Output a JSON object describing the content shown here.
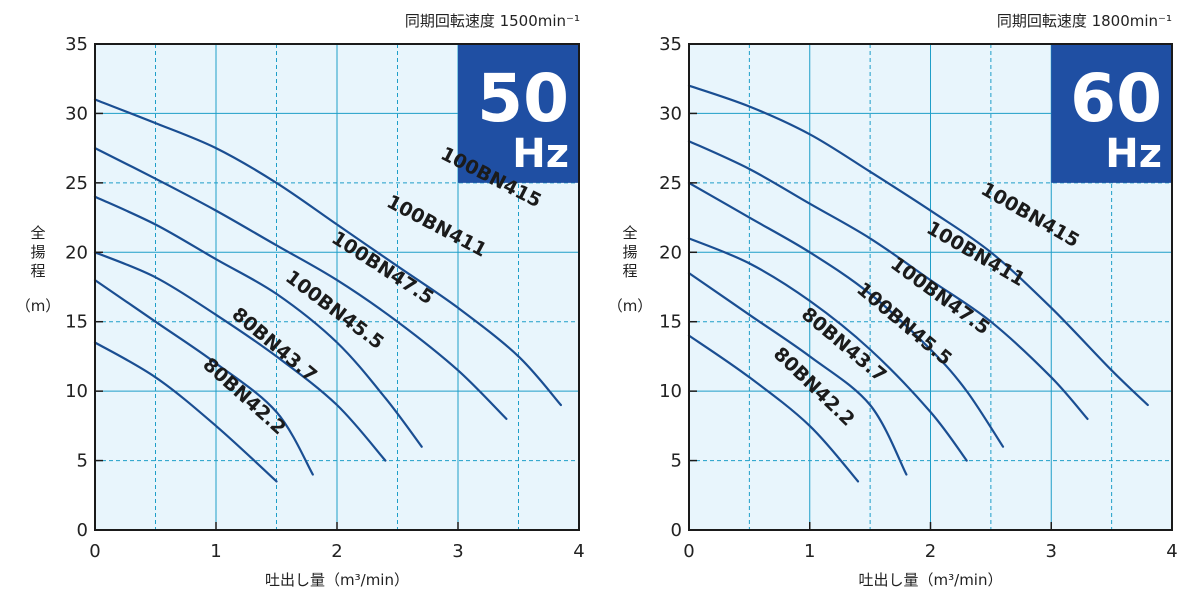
{
  "chart_data": [
    {
      "type": "line",
      "speed_label": "同期回転速度 1500min⁻¹",
      "badge_number": "50",
      "badge_unit": "Hz",
      "ylabel_chars": [
        "全",
        "揚",
        "程"
      ],
      "ylabel_unit": "（m）",
      "xlabel": "吐出し量（m³/min）",
      "xlim": [
        0,
        4
      ],
      "ylim": [
        0,
        35
      ],
      "xticks": [
        0,
        1,
        2,
        3,
        4
      ],
      "yticks": [
        0,
        5,
        10,
        15,
        20,
        25,
        30,
        35
      ],
      "grid": true,
      "background": "#e8f5fc",
      "line_color": "#1a4e92",
      "badge_color": "#1f4fa3",
      "series": [
        {
          "name": "100BN415",
          "label_at": [
            3.25,
            25.0
          ],
          "label_angle": 27,
          "points": [
            [
              0,
              31
            ],
            [
              0.5,
              29.3
            ],
            [
              1,
              27.5
            ],
            [
              1.5,
              25
            ],
            [
              2,
              22
            ],
            [
              2.5,
              19
            ],
            [
              3,
              16
            ],
            [
              3.5,
              12.5
            ],
            [
              3.85,
              9
            ]
          ]
        },
        {
          "name": "100BN411",
          "label_at": [
            2.8,
            21.5
          ],
          "label_angle": 28,
          "points": [
            [
              0,
              27.5
            ],
            [
              0.5,
              25.3
            ],
            [
              1,
              23
            ],
            [
              1.5,
              20.5
            ],
            [
              2,
              18
            ],
            [
              2.5,
              15
            ],
            [
              3,
              11.5
            ],
            [
              3.4,
              8
            ]
          ]
        },
        {
          "name": "100BN47.5",
          "label_at": [
            2.35,
            18.5
          ],
          "label_angle": 33,
          "points": [
            [
              0,
              24
            ],
            [
              0.5,
              22
            ],
            [
              1,
              19.5
            ],
            [
              1.5,
              17
            ],
            [
              2,
              13.5
            ],
            [
              2.4,
              9.5
            ],
            [
              2.7,
              6
            ]
          ]
        },
        {
          "name": "100BN45.5",
          "label_at": [
            1.95,
            15.5
          ],
          "label_angle": 37,
          "points": [
            [
              0,
              20
            ],
            [
              0.5,
              18.2
            ],
            [
              1,
              15.5
            ],
            [
              1.5,
              12.5
            ],
            [
              2,
              9
            ],
            [
              2.4,
              5
            ]
          ]
        },
        {
          "name": "80BN43.7",
          "label_at": [
            1.45,
            13.0
          ],
          "label_angle": 40,
          "points": [
            [
              0,
              18
            ],
            [
              0.5,
              15
            ],
            [
              1,
              12
            ],
            [
              1.5,
              8.5
            ],
            [
              1.8,
              4
            ]
          ]
        },
        {
          "name": "80BN42.2",
          "label_at": [
            1.2,
            9.3
          ],
          "label_angle": 42,
          "points": [
            [
              0,
              13.5
            ],
            [
              0.5,
              11
            ],
            [
              1,
              7.5
            ],
            [
              1.5,
              3.5
            ]
          ]
        }
      ]
    },
    {
      "type": "line",
      "speed_label": "同期回転速度 1800min⁻¹",
      "badge_number": "60",
      "badge_unit": "Hz",
      "ylabel_chars": [
        "全",
        "揚",
        "程"
      ],
      "ylabel_unit": "（m）",
      "xlabel": "吐出し量（m³/min）",
      "xlim": [
        0,
        4
      ],
      "ylim": [
        0,
        35
      ],
      "xticks": [
        0,
        1,
        2,
        3,
        4
      ],
      "yticks": [
        0,
        5,
        10,
        15,
        20,
        25,
        30,
        35
      ],
      "grid": true,
      "background": "#e8f5fc",
      "line_color": "#1a4e92",
      "badge_color": "#1f4fa3",
      "series": [
        {
          "name": "100BN415",
          "label_at": [
            2.8,
            22.3
          ],
          "label_angle": 30,
          "points": [
            [
              0,
              32
            ],
            [
              0.5,
              30.5
            ],
            [
              1,
              28.5
            ],
            [
              1.5,
              25.8
            ],
            [
              2,
              23
            ],
            [
              2.5,
              20
            ],
            [
              3,
              16
            ],
            [
              3.5,
              11.5
            ],
            [
              3.8,
              9
            ]
          ]
        },
        {
          "name": "100BN411",
          "label_at": [
            2.35,
            19.5
          ],
          "label_angle": 30,
          "points": [
            [
              0,
              28
            ],
            [
              0.5,
              26
            ],
            [
              1,
              23.5
            ],
            [
              1.5,
              21
            ],
            [
              2,
              18
            ],
            [
              2.5,
              15
            ],
            [
              3,
              11
            ],
            [
              3.3,
              8
            ]
          ]
        },
        {
          "name": "100BN47.5",
          "label_at": [
            2.05,
            16.5
          ],
          "label_angle": 36,
          "points": [
            [
              0,
              25
            ],
            [
              0.5,
              22.5
            ],
            [
              1,
              20
            ],
            [
              1.5,
              17
            ],
            [
              2,
              13
            ],
            [
              2.3,
              10
            ],
            [
              2.6,
              6
            ]
          ]
        },
        {
          "name": "100BN45.5",
          "label_at": [
            1.75,
            14.5
          ],
          "label_angle": 40,
          "points": [
            [
              0,
              21
            ],
            [
              0.5,
              19.2
            ],
            [
              1,
              16.5
            ],
            [
              1.5,
              13
            ],
            [
              2,
              8.5
            ],
            [
              2.3,
              5
            ]
          ]
        },
        {
          "name": "80BN43.7",
          "label_at": [
            1.25,
            13.0
          ],
          "label_angle": 40,
          "points": [
            [
              0,
              18.5
            ],
            [
              0.5,
              15.5
            ],
            [
              1,
              12.5
            ],
            [
              1.5,
              9
            ],
            [
              1.8,
              4
            ]
          ]
        },
        {
          "name": "80BN42.2",
          "label_at": [
            1.0,
            10.0
          ],
          "label_angle": 44,
          "points": [
            [
              0,
              14
            ],
            [
              0.5,
              11
            ],
            [
              1,
              7.5
            ],
            [
              1.4,
              3.5
            ]
          ]
        }
      ]
    }
  ]
}
